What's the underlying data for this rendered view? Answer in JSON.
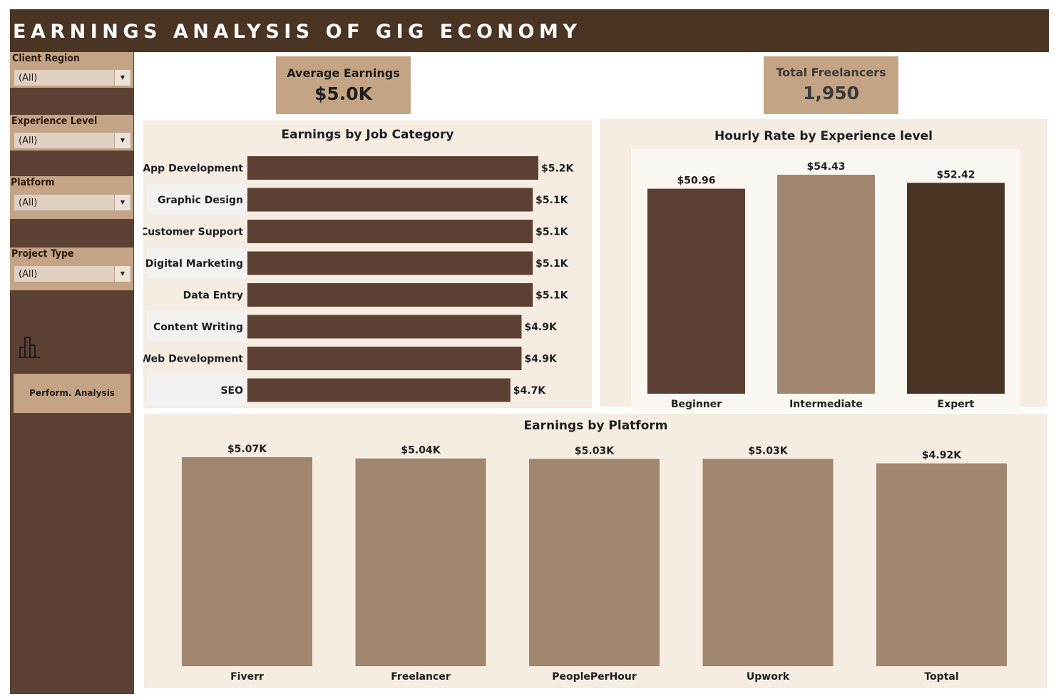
{
  "header": {
    "title": "EARNINGS ANALYSIS OF GIG ECONOMY"
  },
  "filters": [
    {
      "label": "Client Region",
      "value": "(All)"
    },
    {
      "label": "Experience Level",
      "value": "(All)"
    },
    {
      "label": "Platform",
      "value": "(All)"
    },
    {
      "label": "Project Type",
      "value": "(All)"
    }
  ],
  "sidebar": {
    "icon": "bar-chart-icon",
    "button_label": "Perform. Analysis"
  },
  "kpis": {
    "avg_earnings": {
      "label": "Average Earnings",
      "value": "$5.0K"
    },
    "total_freelancers": {
      "label": "Total Freelancers",
      "value": "1,950"
    }
  },
  "colors": {
    "header": "#4a3423",
    "sidebar": "#5c4033",
    "accent": "#c4a485",
    "panel": "#f5ece2",
    "bar_dark": "#5c4033",
    "bar_light": "#a0866f",
    "bar_darkest": "#4a3423"
  },
  "chart_data": [
    {
      "id": "job",
      "type": "bar",
      "orientation": "horizontal",
      "title": "Earnings by Job Category",
      "categories": [
        "App Development",
        "Graphic Design",
        "Customer Support",
        "Digital Marketing",
        "Data Entry",
        "Content Writing",
        "Web Development",
        "SEO"
      ],
      "values": [
        5.2,
        5.1,
        5.1,
        5.1,
        5.1,
        4.9,
        4.9,
        4.7
      ],
      "labels": [
        "$5.2K",
        "$5.1K",
        "$5.1K",
        "$5.1K",
        "$5.1K",
        "$4.9K",
        "$4.9K",
        "$4.7K"
      ],
      "unit": "K USD",
      "xlim": [
        0,
        5.2
      ]
    },
    {
      "id": "hourly",
      "type": "bar",
      "title": "Hourly Rate by Experience level",
      "categories": [
        "Beginner",
        "Intermediate",
        "Expert"
      ],
      "values": [
        50.96,
        54.43,
        52.42
      ],
      "labels": [
        "$50.96",
        "$54.43",
        "$52.42"
      ],
      "colors": [
        "#5c4033",
        "#a0866f",
        "#4a3423"
      ],
      "ylim": [
        0,
        54.43
      ]
    },
    {
      "id": "platform",
      "type": "bar",
      "title": "Earnings by Platform",
      "categories": [
        "Fiverr",
        "Freelancer",
        "PeoplePerHour",
        "Upwork",
        "Toptal"
      ],
      "values": [
        5.07,
        5.04,
        5.03,
        5.03,
        4.92
      ],
      "labels": [
        "$5.07K",
        "$5.04K",
        "$5.03K",
        "$5.03K",
        "$4.92K"
      ],
      "unit": "K USD",
      "ylim": [
        0,
        5.07
      ]
    }
  ]
}
